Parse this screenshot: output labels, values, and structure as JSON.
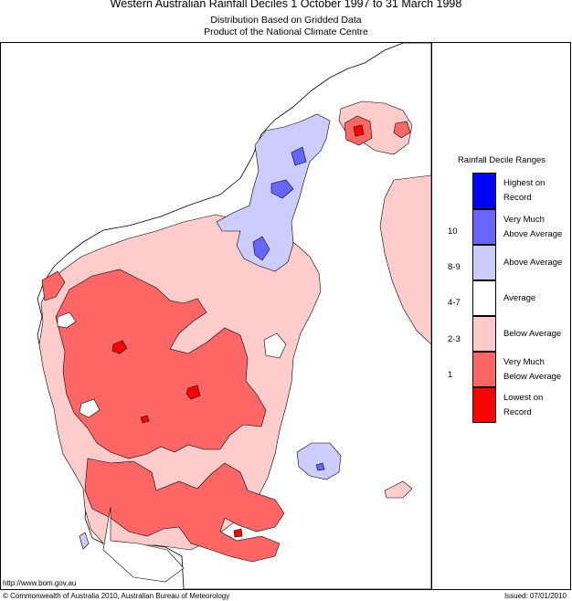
{
  "header": {
    "title": "Western Australian Rainfall Deciles     1 October 1997 to 31 March 1998",
    "subtitle_1": "Distribution Based on Gridded Data",
    "subtitle_2": "Product of the National Climate Centre"
  },
  "legend": {
    "title": "Rainfall Decile Ranges",
    "items": [
      {
        "label": "Highest on Record",
        "decile": "",
        "color": "#0000ff"
      },
      {
        "label": "Very Much Above Average",
        "decile": "10",
        "color": "#6666ff"
      },
      {
        "label": "Above Average",
        "decile": "8-9",
        "color": "#ccccff"
      },
      {
        "label": "Average",
        "decile": "4-7",
        "color": "#ffffff"
      },
      {
        "label": "Below Average",
        "decile": "2-3",
        "color": "#ffcccc"
      },
      {
        "label": "Very Much Below Average",
        "decile": "1",
        "color": "#ff6666"
      },
      {
        "label": "Lowest on Record",
        "decile": "",
        "color": "#ff0000"
      }
    ]
  },
  "footer": {
    "url": "http://www.bom.gov.au",
    "copyright": "© Commonwealth of Australia 2010, Australian Bureau of Meteorology",
    "issued": "Issued: 07/01/2010"
  },
  "colors": {
    "below_average": "#ffcccc",
    "very_much_below": "#ff6666",
    "lowest_on_record": "#ff0000",
    "above_average": "#ccccff",
    "very_much_above": "#6666ff",
    "average": "#ffffff"
  }
}
